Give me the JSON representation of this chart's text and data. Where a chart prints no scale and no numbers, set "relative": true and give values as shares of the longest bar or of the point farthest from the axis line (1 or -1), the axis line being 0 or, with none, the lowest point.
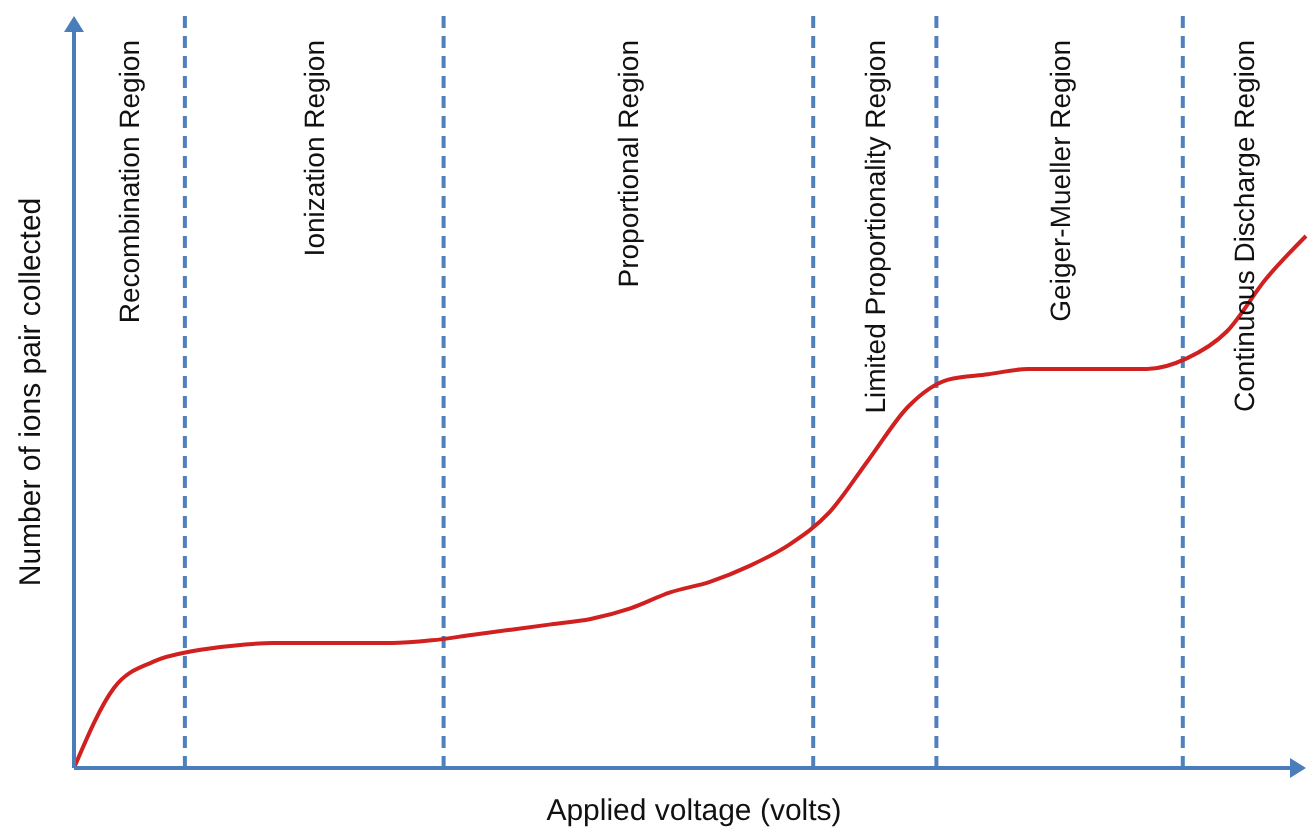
{
  "chart_data": {
    "type": "line",
    "relative": true,
    "xlabel": "Applied voltage (volts)",
    "ylabel": "Number of ions pair collected",
    "categories": [
      null,
      null,
      null,
      null,
      null,
      null,
      null,
      null,
      null,
      null,
      null,
      null,
      null,
      null,
      null,
      null,
      null,
      null,
      null,
      null,
      null,
      null,
      null,
      null,
      null,
      null,
      null,
      null,
      null,
      null,
      null,
      null
    ],
    "series": [
      {
        "color": "#d02020",
        "values": [
          0,
          0.15,
          0.2,
          0.22,
          0.23,
          0.235,
          0.235,
          0.235,
          0.235,
          0.24,
          0.25,
          0.26,
          0.27,
          0.28,
          0.3,
          0.33,
          0.35,
          0.38,
          0.42,
          0.48,
          0.58,
          0.68,
          0.73,
          0.74,
          0.75,
          0.75,
          0.75,
          0.75,
          0.77,
          0.82,
          0.92,
          1
        ]
      }
    ],
    "annotations": [
      "Recombination Region",
      "Ionization Region",
      "Proportional Region",
      "Limited Proportionality Region",
      "Geiger-Mueller Region",
      "Continuous Discharge Region"
    ],
    "marker": "none",
    "line_style": "solid"
  }
}
